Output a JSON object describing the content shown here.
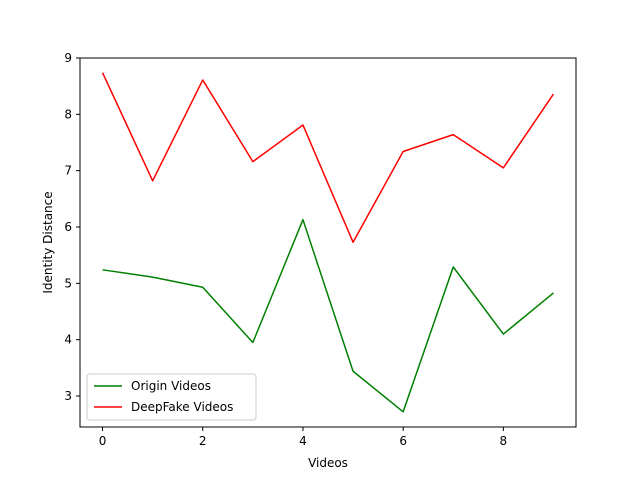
{
  "chart_data": {
    "type": "line",
    "xlabel": "Videos",
    "ylabel": "Identity Distance",
    "xlim": [
      -0.45,
      9.45
    ],
    "ylim": [
      2.45,
      9.0
    ],
    "xticks": [
      "0",
      "2",
      "4",
      "6",
      "8"
    ],
    "yticks": [
      "3",
      "4",
      "5",
      "6",
      "7",
      "8",
      "9"
    ],
    "x": [
      0,
      1,
      2,
      3,
      4,
      5,
      6,
      7,
      8,
      9
    ],
    "series": [
      {
        "name": "Origin Videos",
        "color": "#008000",
        "values": [
          5.24,
          5.11,
          4.93,
          3.95,
          6.13,
          3.44,
          2.72,
          5.29,
          4.1,
          4.83
        ]
      },
      {
        "name": "DeepFake Videos",
        "color": "#ff0000",
        "values": [
          8.74,
          6.82,
          8.61,
          7.16,
          7.81,
          5.73,
          7.34,
          7.64,
          7.05,
          8.36
        ]
      }
    ],
    "legend_position": "lower-left",
    "grid": false
  }
}
